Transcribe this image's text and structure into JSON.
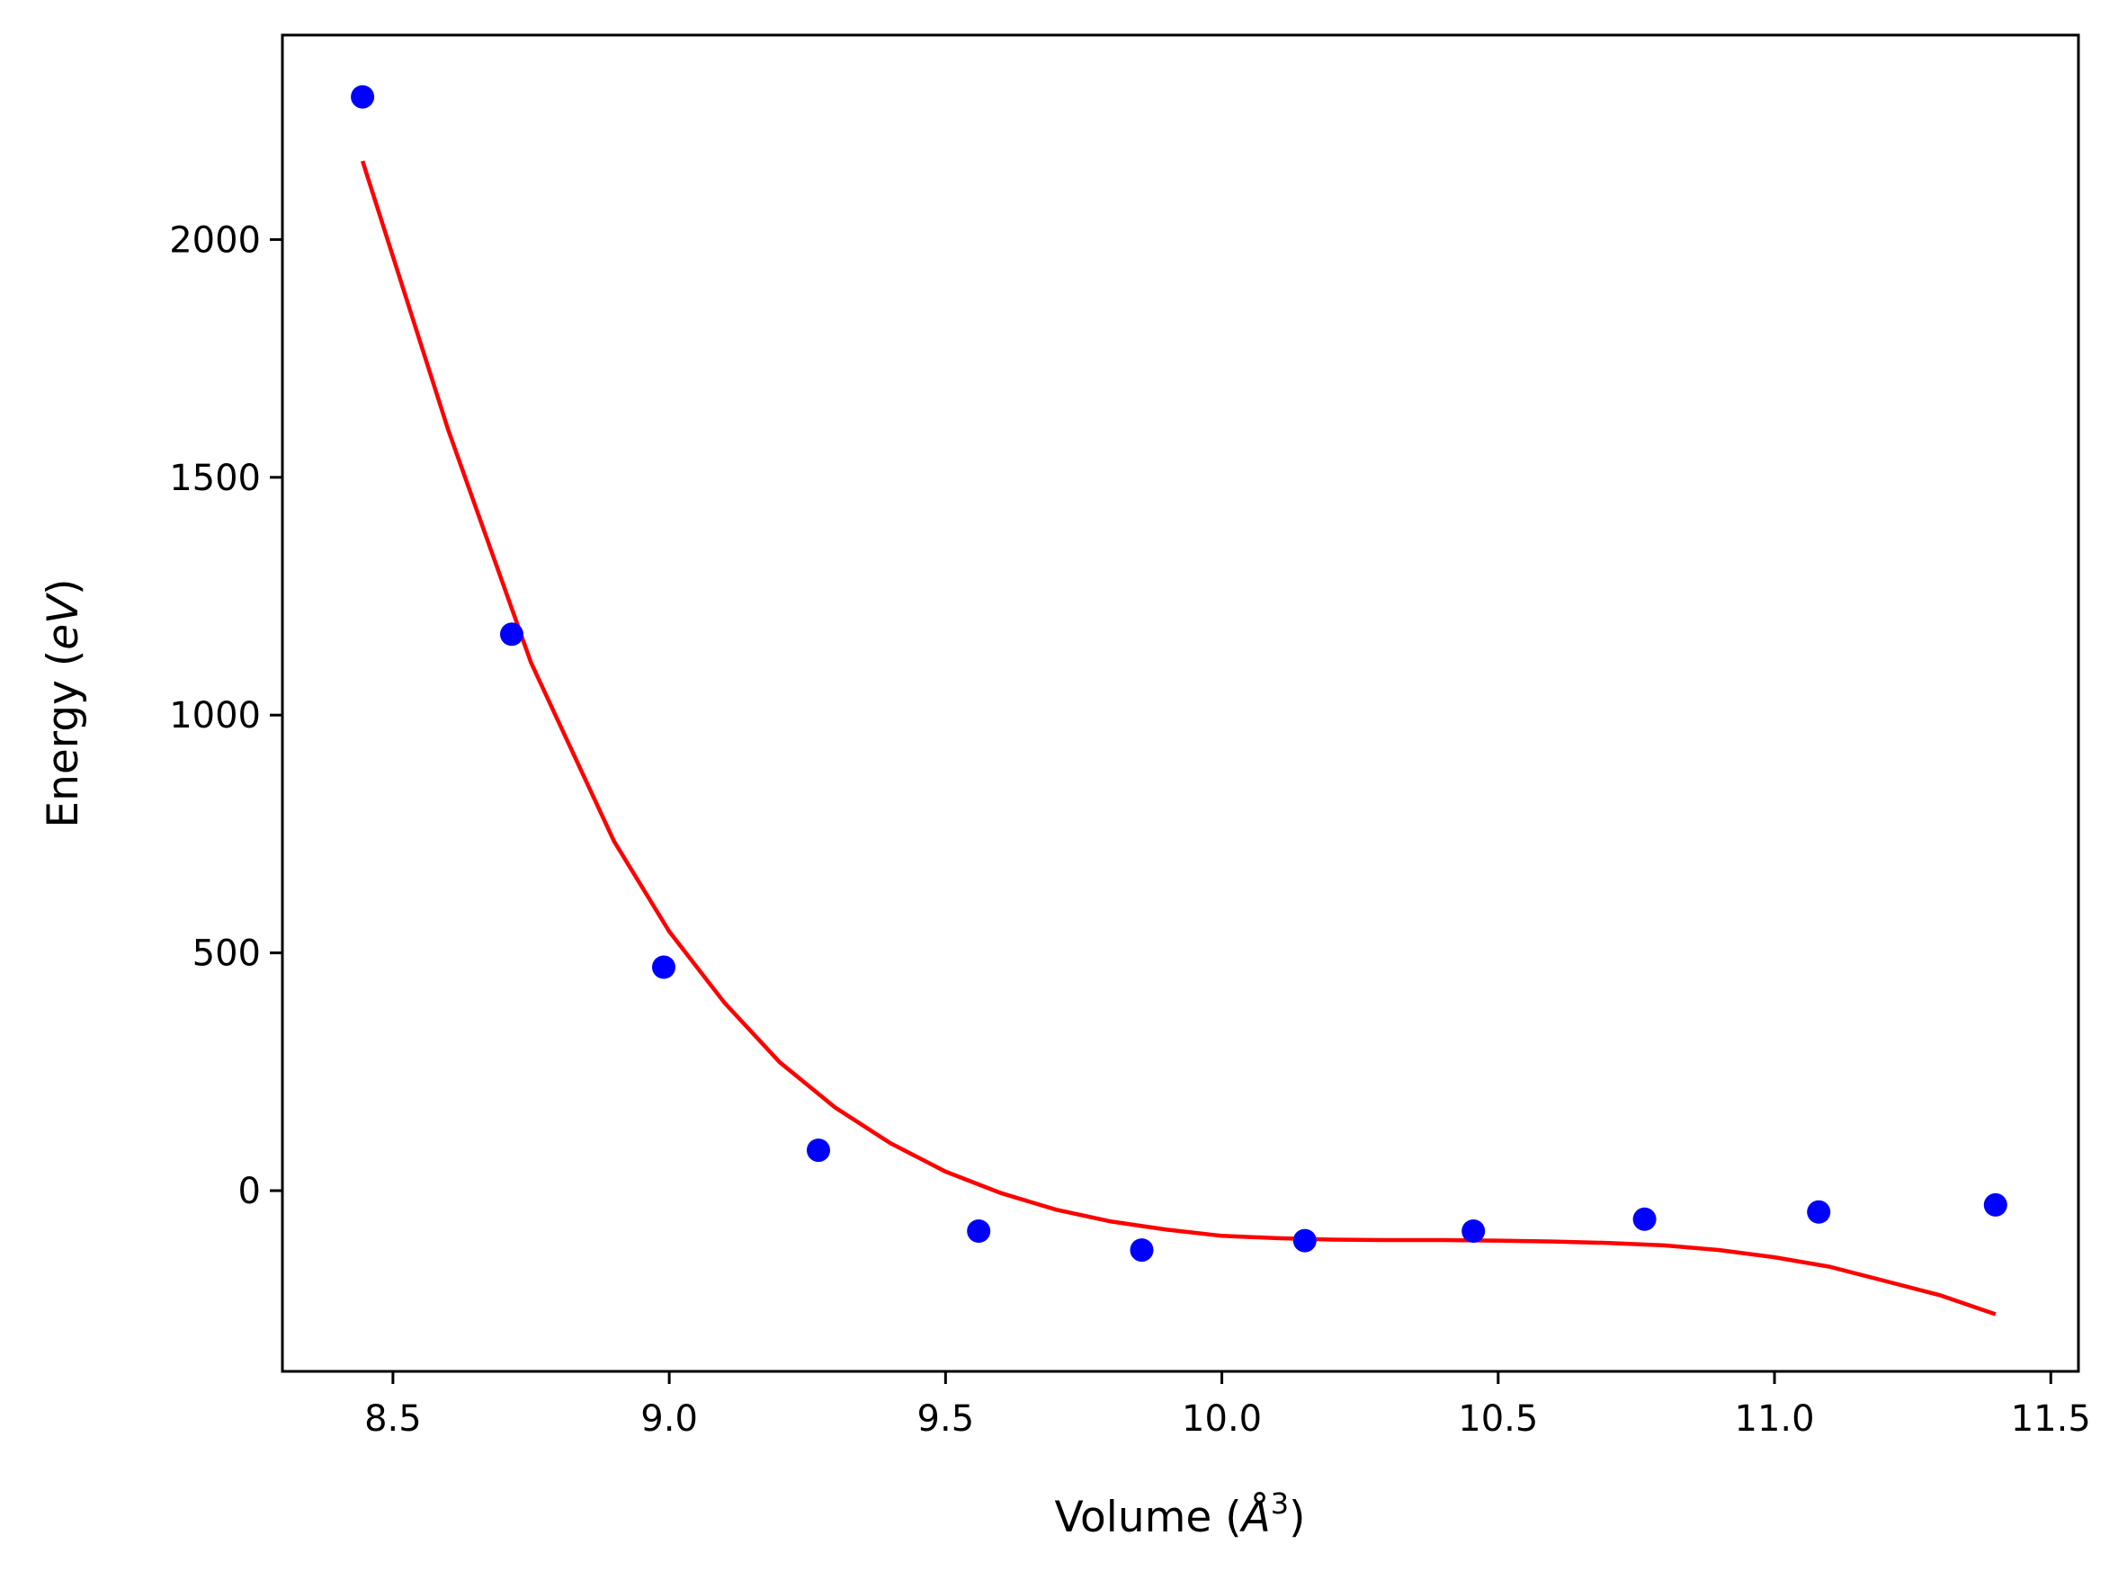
{
  "chart_data": {
    "type": "scatter",
    "xlabel_parts": {
      "before": "Volume (",
      "italic": "Å",
      "sup": "3",
      "after": ")"
    },
    "ylabel_parts": {
      "before": "Energy (",
      "italic": "eV",
      "after": ")"
    },
    "xlim": [
      8.3,
      11.55
    ],
    "ylim": [
      -380,
      2430
    ],
    "x_ticks": [
      8.5,
      9.0,
      9.5,
      10.0,
      10.5,
      11.0,
      11.5
    ],
    "x_tick_labels": [
      "8.5",
      "9.0",
      "9.5",
      "10.0",
      "10.5",
      "11.0",
      "11.5"
    ],
    "y_ticks": [
      0,
      500,
      1000,
      1500,
      2000
    ],
    "y_tick_labels": [
      "0",
      "500",
      "1000",
      "1500",
      "2000"
    ],
    "grid": false,
    "series": [
      {
        "kind": "points",
        "color": "#0000ff",
        "x": [
          8.445,
          8.715,
          8.99,
          9.27,
          9.56,
          9.855,
          10.15,
          10.455,
          10.765,
          11.08,
          11.4
        ],
        "y": [
          2300,
          1170,
          470,
          85,
          -85,
          -125,
          -105,
          -85,
          -60,
          -45,
          -30
        ]
      },
      {
        "kind": "line",
        "color": "#ff0000",
        "x": [
          8.445,
          8.6,
          8.75,
          8.9,
          9.0,
          9.1,
          9.2,
          9.3,
          9.4,
          9.5,
          9.6,
          9.7,
          9.8,
          9.9,
          10.0,
          10.1,
          10.2,
          10.3,
          10.4,
          10.5,
          10.6,
          10.7,
          10.8,
          10.9,
          11.0,
          11.1,
          11.2,
          11.3,
          11.4
        ],
        "y": [
          2165,
          1600,
          1110,
          735,
          545,
          395,
          270,
          175,
          100,
          40,
          -5,
          -40,
          -65,
          -82,
          -95,
          -100,
          -103,
          -104,
          -104,
          -105,
          -107,
          -110,
          -115,
          -125,
          -140,
          -160,
          -190,
          -220,
          -260
        ]
      }
    ]
  }
}
